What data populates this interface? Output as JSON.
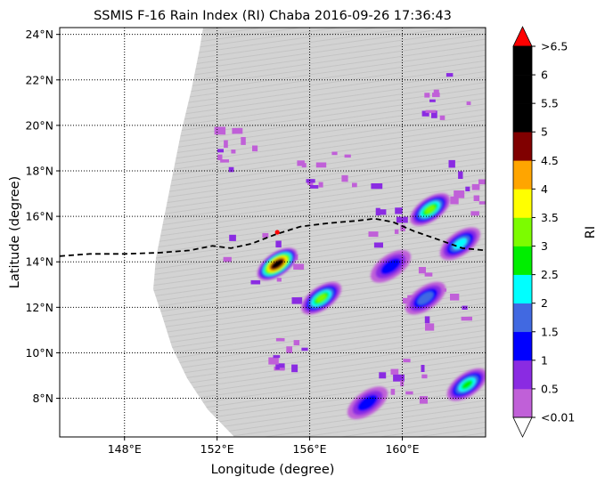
{
  "title": "SSMIS F-16 Rain Index (RI) Chaba 2016-09-26 17:36:43",
  "axes": {
    "xlabel": "Longitude (degree)",
    "ylabel": "Latitude (degree)",
    "x_ticks": [
      "148°E",
      "152°E",
      "156°E",
      "160°E"
    ],
    "y_ticks": [
      "8°N",
      "10°N",
      "12°N",
      "14°N",
      "16°N",
      "18°N",
      "20°N",
      "22°N",
      "24°N"
    ]
  },
  "colorbar": {
    "label": "RI",
    "ticks": [
      "<0.01",
      "0.5",
      "1",
      "1.5",
      "2",
      "2.5",
      "3",
      "3.5",
      "4",
      "4.5",
      "5",
      "5.5",
      "6",
      ">6.5"
    ],
    "over_color": "#ff0000",
    "under_color": "#ffffff",
    "colors": [
      "#c060d8",
      "#8a2be2",
      "#0000ff",
      "#4169e1",
      "#00ffff",
      "#00ee00",
      "#7cfc00",
      "#ffff00",
      "#ffa500",
      "#800000",
      "#000000",
      "#000000",
      "#000000"
    ]
  },
  "swath_color": "#d3d3d3",
  "track_color": "#000000",
  "center_marker_color": "#ff0000",
  "chart_data": {
    "type": "map",
    "extent": {
      "lon": [
        145.2,
        163.6
      ],
      "lat": [
        6.3,
        24.3
      ]
    },
    "track": [
      [
        145.2,
        14.25
      ],
      [
        146.5,
        14.35
      ],
      [
        148.0,
        14.35
      ],
      [
        149.5,
        14.4
      ],
      [
        150.8,
        14.5
      ],
      [
        151.8,
        14.7
      ],
      [
        152.6,
        14.6
      ],
      [
        153.5,
        14.8
      ],
      [
        154.5,
        15.2
      ],
      [
        155.6,
        15.55
      ],
      [
        156.8,
        15.7
      ],
      [
        158.0,
        15.8
      ],
      [
        158.8,
        15.9
      ],
      [
        159.6,
        15.75
      ],
      [
        160.5,
        15.35
      ],
      [
        161.5,
        15.0
      ],
      [
        162.6,
        14.6
      ],
      [
        163.6,
        14.5
      ]
    ],
    "center": [
      154.6,
      15.3
    ],
    "rain_cells": [
      {
        "lon": 154.6,
        "lat": 13.9,
        "value": 6.5
      },
      {
        "lon": 156.5,
        "lat": 12.4,
        "value": 3.5
      },
      {
        "lon": 161.2,
        "lat": 16.3,
        "value": 3.5
      },
      {
        "lon": 162.8,
        "lat": 8.6,
        "value": 3.0
      },
      {
        "lon": 161.0,
        "lat": 12.4,
        "value": 2.0
      },
      {
        "lon": 162.5,
        "lat": 14.8,
        "value": 2.5
      },
      {
        "lon": 159.5,
        "lat": 13.8,
        "value": 1.5
      },
      {
        "lon": 158.5,
        "lat": 7.8,
        "value": 1.5
      }
    ]
  }
}
